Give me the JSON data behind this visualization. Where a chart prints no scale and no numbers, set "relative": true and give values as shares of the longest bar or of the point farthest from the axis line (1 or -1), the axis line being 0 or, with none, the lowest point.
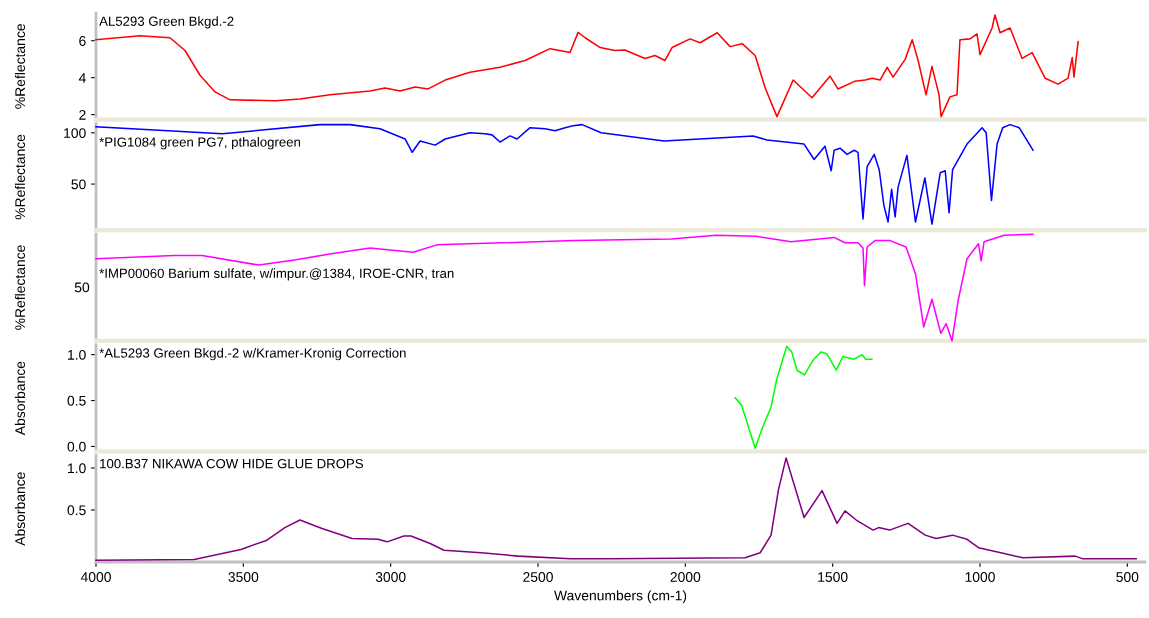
{
  "chart_data": [
    {
      "type": "line",
      "title": "AL5293 Green Bkgd.-2",
      "ylabel": "%Reflectance",
      "xlim": [
        4000,
        440
      ],
      "ylim": [
        1.73,
        7.5
      ],
      "yticks": [
        2,
        4,
        6
      ],
      "tick_labels": "y",
      "x": [
        4000,
        3851,
        3749,
        3698,
        3647,
        3596,
        3545,
        3392,
        3308,
        3206,
        3070,
        3019,
        2968,
        2917,
        2873,
        2815,
        2731,
        2629,
        2544,
        2459,
        2391,
        2364,
        2340,
        2289,
        2239,
        2205,
        2137,
        2103,
        2069,
        2045,
        1984,
        1950,
        1892,
        1848,
        1807,
        1763,
        1729,
        1689,
        1634,
        1570,
        1509,
        1482,
        1424,
        1390,
        1366,
        1339,
        1315,
        1295,
        1254,
        1230,
        1210,
        1183,
        1163,
        1139,
        1132,
        1102,
        1078,
        1068,
        1034,
        1010,
        1000,
        983,
        959,
        949,
        932,
        898,
        857,
        823,
        779,
        735,
        701,
        687,
        681,
        667
      ],
      "series": [
        {
          "color": "#ff0000",
          "values": [
            6.05,
            6.27,
            6.16,
            5.47,
            4.13,
            3.23,
            2.8,
            2.75,
            2.85,
            3.07,
            3.28,
            3.44,
            3.28,
            3.49,
            3.39,
            3.87,
            4.29,
            4.56,
            4.93,
            5.57,
            5.36,
            6.45,
            6.16,
            5.63,
            5.47,
            5.5,
            5.04,
            5.2,
            4.93,
            5.63,
            6.1,
            5.89,
            6.43,
            5.68,
            5.84,
            5.2,
            3.44,
            1.89,
            3.87,
            2.91,
            4.08,
            3.39,
            3.81,
            3.87,
            3.97,
            3.87,
            4.56,
            4.03,
            4.99,
            6.05,
            4.93,
            3.07,
            4.61,
            3.07,
            1.89,
            2.96,
            3.07,
            6.05,
            6.1,
            6.37,
            5.25,
            5.84,
            6.69,
            7.39,
            6.43,
            6.69,
            5.04,
            5.36,
            3.97,
            3.65,
            3.97,
            5.09,
            4.03,
            5.95
          ]
        }
      ]
    },
    {
      "type": "line",
      "title": "*PIG1084 green PG7, pthalogreen",
      "ylabel": "%Reflectance",
      "xlim": [
        4000,
        440
      ],
      "ylim": [
        5,
        109
      ],
      "yticks": [
        50,
        100
      ],
      "tick_labels": "y",
      "x": [
        4000,
        3817,
        3572,
        3240,
        3138,
        3036,
        2951,
        2927,
        2900,
        2849,
        2815,
        2731,
        2680,
        2656,
        2629,
        2595,
        2571,
        2527,
        2476,
        2442,
        2408,
        2381,
        2350,
        2286,
        2072,
        1770,
        1723,
        1597,
        1563,
        1526,
        1505,
        1495,
        1475,
        1451,
        1427,
        1414,
        1397,
        1383,
        1359,
        1342,
        1326,
        1312,
        1300,
        1288,
        1278,
        1248,
        1219,
        1187,
        1163,
        1135,
        1118,
        1105,
        1093,
        1044,
        993,
        979,
        961,
        942,
        923,
        898,
        867,
        820
      ],
      "series": [
        {
          "color": "#0000ff",
          "values": [
            106,
            103,
            99,
            108,
            108,
            104,
            94,
            81,
            92,
            88,
            94,
            100,
            99,
            98,
            91,
            97,
            94,
            105,
            104,
            102,
            105,
            107,
            108,
            100,
            92,
            97,
            93,
            89,
            74,
            87,
            63,
            83,
            85,
            79,
            83,
            81,
            16,
            67,
            79,
            64,
            29,
            13,
            45,
            18,
            47,
            78,
            13,
            56,
            11,
            61,
            63,
            22,
            64,
            89,
            105,
            100,
            34,
            89,
            105,
            108,
            105,
            83
          ]
        }
      ]
    },
    {
      "type": "line",
      "title": "*IMP00060 Barium sulfate, w/impur.@1384, IROE-CNR, tran",
      "ylabel": "%Reflectance",
      "relative": true,
      "xlim": [
        4000,
        440
      ],
      "annotations": [
        "50"
      ],
      "tick_labels": "y",
      "x": [
        4000,
        3735,
        3640,
        3447,
        3321,
        3196,
        3070,
        2924,
        2843,
        2378,
        2048,
        1896,
        1760,
        1641,
        1495,
        1458,
        1414,
        1397,
        1392,
        1383,
        1356,
        1305,
        1251,
        1219,
        1191,
        1163,
        1133,
        1115,
        1095,
        1074,
        1044,
        1005,
        996,
        986,
        918,
        820
      ],
      "series": [
        {
          "color": "#ff00ff",
          "values": [
            0.77,
            0.8,
            0.8,
            0.71,
            0.76,
            0.82,
            0.87,
            0.83,
            0.9,
            0.94,
            0.955,
            0.99,
            0.98,
            0.93,
            0.97,
            0.92,
            0.92,
            0.87,
            0.52,
            0.88,
            0.94,
            0.94,
            0.88,
            0.63,
            0.13,
            0.39,
            0.07,
            0.16,
            0,
            0.38,
            0.77,
            0.91,
            0.75,
            0.93,
            0.99,
            1
          ]
        }
      ]
    },
    {
      "type": "line",
      "title": "*AL5293 Green Bkgd.-2 w/Kramer-Kronig Correction",
      "ylabel": "Absorbance",
      "xlim": [
        4000,
        440
      ],
      "ylim": [
        -0.054,
        1.107
      ],
      "yticks": [
        {
          "value": 0,
          "label": "0.0"
        },
        {
          "value": 0.5,
          "label": "0.5"
        },
        {
          "value": 1,
          "label": "1.0"
        }
      ],
      "tick_labels": "y",
      "x": [
        1831,
        1809,
        1763,
        1740,
        1709,
        1690,
        1656,
        1639,
        1621,
        1596,
        1564,
        1539,
        1520,
        1488,
        1465,
        1426,
        1400,
        1388,
        1367
      ],
      "series": [
        {
          "color": "#00ff00",
          "values": [
            0.53,
            0.45,
            -0.02,
            0.19,
            0.43,
            0.73,
            1.09,
            1.03,
            0.83,
            0.78,
            0.95,
            1.03,
            1.01,
            0.83,
            0.98,
            0.95,
            1.0,
            0.95,
            0.95
          ]
        }
      ]
    },
    {
      "type": "line",
      "title": "100.B37 NIKAWA COW HIDE GLUE DROPS",
      "ylabel": "Absorbance",
      "xlabel": "Wavenumbers (cm-1)",
      "xlim": [
        4000,
        440
      ],
      "ylim": [
        -0.12,
        1.15
      ],
      "yticks": [
        {
          "value": 0.5,
          "label": "0.5"
        },
        {
          "value": 1,
          "label": "1.0"
        }
      ],
      "xticks": [
        4000,
        3500,
        3000,
        2500,
        2000,
        1500,
        1000,
        500
      ],
      "x": [
        4000,
        3667,
        3508,
        3420,
        3359,
        3308,
        3233,
        3131,
        3043,
        3012,
        2955,
        2931,
        2866,
        2819,
        2693,
        2566,
        2391,
        2249,
        1797,
        1746,
        1709,
        1684,
        1658,
        1597,
        1536,
        1485,
        1458,
        1420,
        1363,
        1344,
        1307,
        1244,
        1186,
        1149,
        1093,
        1044,
        1005,
        918,
        854,
        677,
        653,
        470
      ],
      "series": [
        {
          "color": "#800080",
          "values": [
            -0.1,
            -0.09,
            0.03,
            0.14,
            0.29,
            0.38,
            0.28,
            0.16,
            0.15,
            0.12,
            0.19,
            0.19,
            0.1,
            0.02,
            -0.01,
            -0.05,
            -0.08,
            -0.08,
            -0.07,
            -0.01,
            0.2,
            0.74,
            1.12,
            0.41,
            0.73,
            0.34,
            0.49,
            0.38,
            0.26,
            0.29,
            0.26,
            0.34,
            0.2,
            0.16,
            0.2,
            0.15,
            0.05,
            -0.02,
            -0.07,
            -0.05,
            -0.08,
            -0.08
          ]
        }
      ]
    }
  ]
}
